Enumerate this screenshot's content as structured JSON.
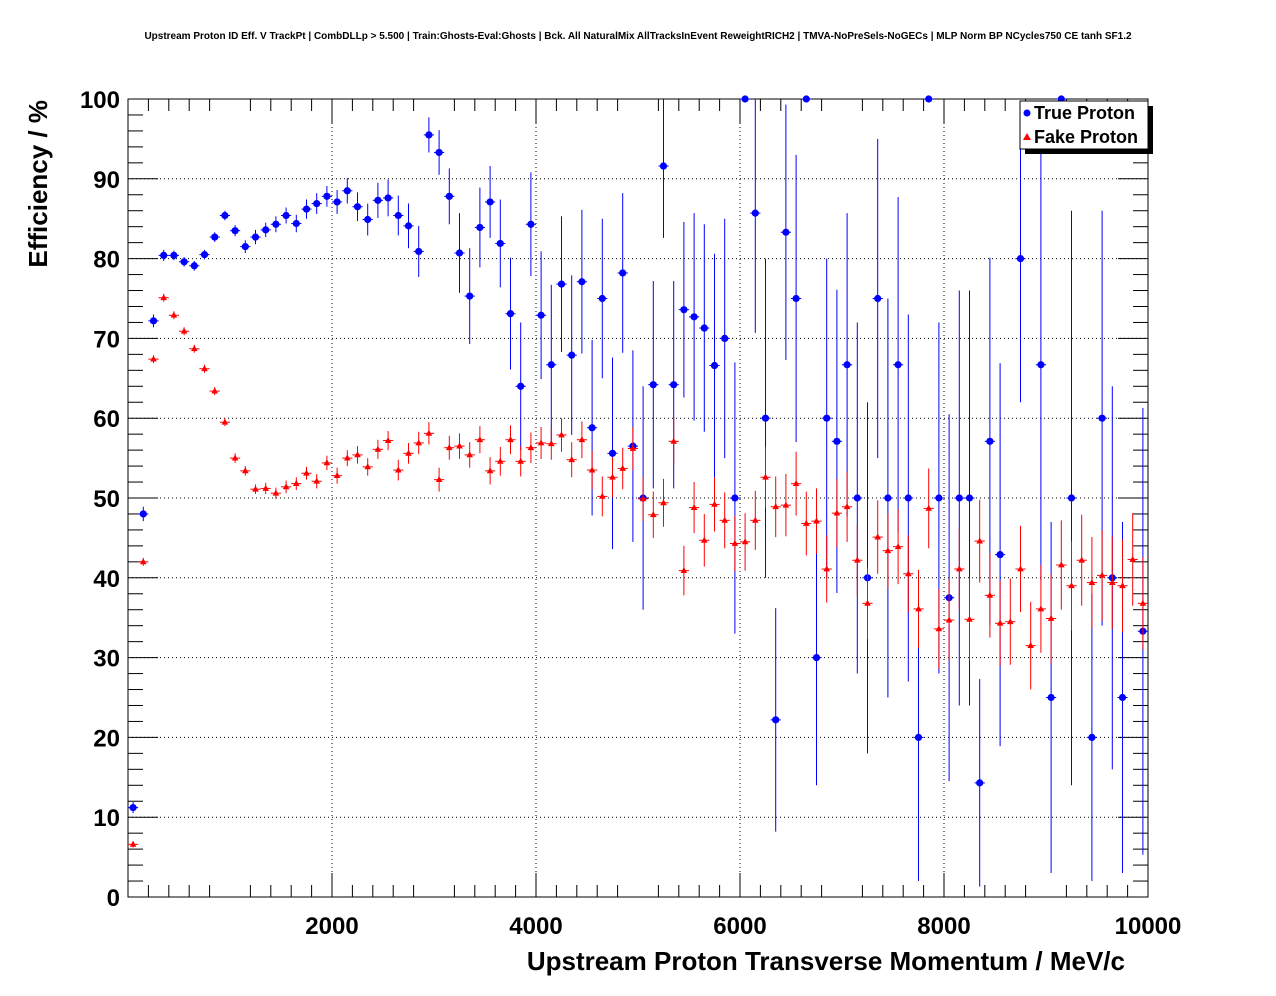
{
  "chart_data": {
    "type": "scatter",
    "title": "Upstream Proton ID Eff. V TrackPt | CombDLLp > 5.500 | Train:Ghosts-Eval:Ghosts | Bck. All NaturalMix AllTracksInEvent ReweightRICH2 | TMVA-NoPreSels-NoGECs | MLP Norm BP NCycles750 CE tanh SF1.2",
    "xlabel": "Upstream Proton Transverse Momentum / MeV/c",
    "ylabel": "Efficiency / %",
    "xlim": [
      0,
      10000
    ],
    "ylim": [
      0,
      100
    ],
    "xticks": [
      2000,
      4000,
      6000,
      8000,
      10000
    ],
    "yticks": [
      0,
      10,
      20,
      30,
      40,
      50,
      60,
      70,
      80,
      90,
      100
    ],
    "grid": true,
    "legend_position": "top-right",
    "series": [
      {
        "name": "True Proton",
        "color": "#0000ff",
        "marker": "circle",
        "x": [
          50,
          150,
          250,
          350,
          450,
          550,
          650,
          750,
          850,
          950,
          1050,
          1150,
          1250,
          1350,
          1450,
          1550,
          1650,
          1750,
          1850,
          1950,
          2050,
          2150,
          2250,
          2350,
          2450,
          2550,
          2650,
          2750,
          2850,
          2950,
          3050,
          3150,
          3250,
          3350,
          3450,
          3550,
          3650,
          3750,
          3850,
          3950,
          4050,
          4150,
          4250,
          4350,
          4450,
          4550,
          4650,
          4750,
          4850,
          4950,
          5050,
          5150,
          5250,
          5350,
          5450,
          5550,
          5650,
          5750,
          5850,
          5950,
          6050,
          6150,
          6250,
          6350,
          6450,
          6550,
          6650,
          6750,
          6850,
          6950,
          7050,
          7150,
          7250,
          7350,
          7450,
          7550,
          7650,
          7750,
          7850,
          7950,
          8050,
          8150,
          8250,
          8350,
          8450,
          8550,
          8650,
          8750,
          8850,
          8950,
          9050,
          9150,
          9250,
          9350,
          9450,
          9550,
          9650,
          9750,
          9850,
          9950
        ],
        "y": [
          11.2,
          48.0,
          72.2,
          80.4,
          80.4,
          79.6,
          79.1,
          80.5,
          82.7,
          85.4,
          83.5,
          81.5,
          82.7,
          83.6,
          84.3,
          85.4,
          84.4,
          86.2,
          86.9,
          87.8,
          87.1,
          88.5,
          86.5,
          84.9,
          87.3,
          87.6,
          85.4,
          84.1,
          80.9,
          95.5,
          93.3,
          87.8,
          80.7,
          75.3,
          83.9,
          87.1,
          81.9,
          73.1,
          64.0,
          84.3,
          72.9,
          66.7,
          76.8,
          67.9,
          77.1,
          58.8,
          75.0,
          55.6,
          78.2,
          56.5,
          50.0,
          64.2,
          91.6,
          64.2,
          73.6,
          72.7,
          71.3,
          66.6,
          70.0,
          50.0,
          100.0,
          85.7,
          60.0,
          22.2,
          83.3,
          75.0,
          100.0,
          30.0,
          60.0,
          57.1,
          66.7,
          50.0,
          40.0,
          75.0,
          50.0,
          66.7,
          50.0,
          20.0,
          100.0,
          50.0,
          37.5,
          50.0,
          50.0,
          14.3,
          57.1,
          42.9,
          null,
          80.0,
          null,
          66.7,
          25.0,
          100.0,
          50.0,
          null,
          20.0,
          60.0,
          40.0,
          25.0,
          null,
          33.3
        ],
        "yerr": [
          0.7,
          0.9,
          0.8,
          0.7,
          0.6,
          0.6,
          0.6,
          0.6,
          0.6,
          0.6,
          0.7,
          0.8,
          0.9,
          0.9,
          1.0,
          1.0,
          1.1,
          1.2,
          1.3,
          1.3,
          1.5,
          1.6,
          1.8,
          2.0,
          2.2,
          2.3,
          2.5,
          2.8,
          3.2,
          2.2,
          2.8,
          3.5,
          5.0,
          6.0,
          5.0,
          4.5,
          5.5,
          7.0,
          8.0,
          6.5,
          8.0,
          10.0,
          8.5,
          10.0,
          9.0,
          11.0,
          10.0,
          12.0,
          10.0,
          12.0,
          14.0,
          13.0,
          9.0,
          13.0,
          11.0,
          13.0,
          13.0,
          14.0,
          15.0,
          17.0,
          0,
          15.0,
          20.0,
          14.0,
          16.0,
          18.0,
          0,
          16.0,
          20.0,
          19.0,
          19.0,
          22.0,
          22.0,
          20.0,
          25.0,
          21.0,
          23.0,
          18.0,
          0,
          22.0,
          23.0,
          26.0,
          26.0,
          13.0,
          23.0,
          24.0,
          0,
          18.0,
          0,
          27.0,
          22.0,
          0,
          36.0,
          0,
          18.0,
          26.0,
          24.0,
          22.0,
          0,
          28.0
        ]
      },
      {
        "name": "Fake Proton",
        "color": "#ff0000",
        "marker": "triangle",
        "x": [
          50,
          150,
          250,
          350,
          450,
          550,
          650,
          750,
          850,
          950,
          1050,
          1150,
          1250,
          1350,
          1450,
          1550,
          1650,
          1750,
          1850,
          1950,
          2050,
          2150,
          2250,
          2350,
          2450,
          2550,
          2650,
          2750,
          2850,
          2950,
          3050,
          3150,
          3250,
          3350,
          3450,
          3550,
          3650,
          3750,
          3850,
          3950,
          4050,
          4150,
          4250,
          4350,
          4450,
          4550,
          4650,
          4750,
          4850,
          4950,
          5050,
          5150,
          5250,
          5350,
          5450,
          5550,
          5650,
          5750,
          5850,
          5950,
          6050,
          6150,
          6250,
          6350,
          6450,
          6550,
          6650,
          6750,
          6850,
          6950,
          7050,
          7150,
          7250,
          7350,
          7450,
          7550,
          7650,
          7750,
          7850,
          7950,
          8050,
          8150,
          8250,
          8350,
          8450,
          8550,
          8650,
          8750,
          8850,
          8950,
          9050,
          9150,
          9250,
          9350,
          9450,
          9550,
          9650,
          9750,
          9850,
          9950
        ],
        "y": [
          6.6,
          42.0,
          67.4,
          75.1,
          72.9,
          70.9,
          68.7,
          66.2,
          63.4,
          59.5,
          55.0,
          53.4,
          51.1,
          51.2,
          50.6,
          51.4,
          51.8,
          53.1,
          52.1,
          54.4,
          52.8,
          55.0,
          55.4,
          53.9,
          56.1,
          57.2,
          53.5,
          55.6,
          56.9,
          58.1,
          52.3,
          56.3,
          56.5,
          55.4,
          57.3,
          53.4,
          54.6,
          57.3,
          54.6,
          56.3,
          56.9,
          56.8,
          57.9,
          54.8,
          57.3,
          53.5,
          50.2,
          52.6,
          53.7,
          56.2,
          49.9,
          47.9,
          49.4,
          57.1,
          40.9,
          48.8,
          44.7,
          49.2,
          47.2,
          44.3,
          44.5,
          47.2,
          52.6,
          48.9,
          49.1,
          51.8,
          46.8,
          47.1,
          41.1,
          48.1,
          48.9,
          42.2,
          36.8,
          45.1,
          43.4,
          43.9,
          40.5,
          36.1,
          48.7,
          33.6,
          34.7,
          41.1,
          34.8,
          44.6,
          37.8,
          34.3,
          34.5,
          41.1,
          31.5,
          36.1,
          34.9,
          41.6,
          39.0,
          42.2,
          39.4,
          40.3,
          39.4,
          39.0,
          42.3,
          36.8
        ],
        "yerr": [
          0.4,
          0.5,
          0.5,
          0.5,
          0.5,
          0.5,
          0.5,
          0.5,
          0.5,
          0.5,
          0.6,
          0.6,
          0.6,
          0.7,
          0.7,
          0.8,
          0.8,
          0.8,
          0.9,
          0.9,
          1.0,
          1.0,
          1.1,
          1.1,
          1.2,
          1.2,
          1.3,
          1.3,
          1.4,
          1.4,
          1.5,
          1.5,
          1.6,
          1.6,
          1.7,
          1.7,
          1.8,
          1.8,
          1.9,
          1.9,
          2.0,
          2.0,
          2.1,
          2.2,
          2.3,
          2.4,
          2.5,
          2.5,
          2.6,
          2.7,
          2.8,
          2.9,
          3.0,
          3.0,
          3.1,
          3.2,
          3.3,
          3.4,
          3.5,
          3.5,
          3.6,
          3.7,
          3.8,
          3.8,
          3.9,
          4.0,
          4.0,
          4.1,
          4.2,
          4.3,
          4.4,
          4.4,
          4.5,
          4.6,
          4.7,
          4.7,
          4.8,
          4.9,
          5.0,
          5.0,
          5.1,
          5.1,
          5.2,
          5.2,
          5.3,
          5.3,
          5.4,
          5.4,
          5.5,
          5.5,
          5.6,
          5.6,
          5.6,
          5.7,
          5.7,
          5.7,
          5.8,
          5.8,
          5.8,
          5.8
        ]
      }
    ]
  }
}
